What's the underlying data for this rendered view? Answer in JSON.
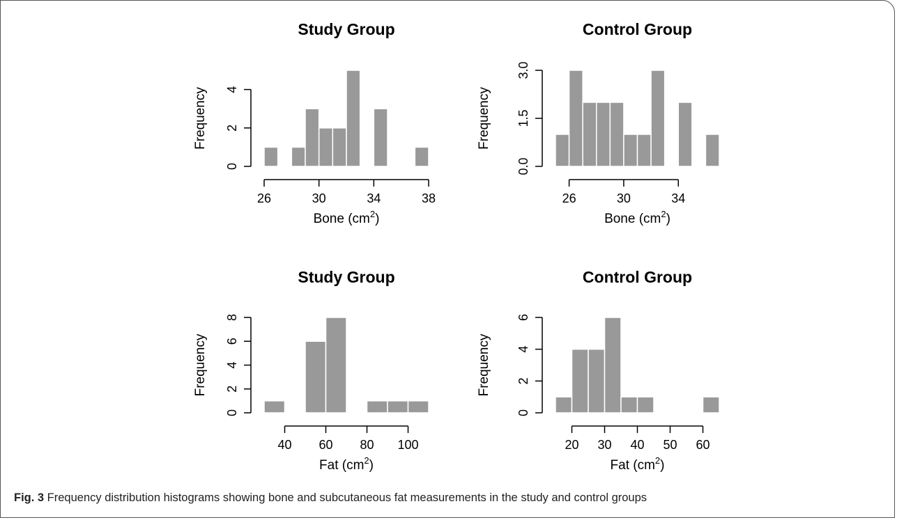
{
  "caption": {
    "label": "Fig. 3",
    "text": " Frequency distribution histograms showing bone and subcutaneous fat measurements in the study and control groups"
  },
  "colors": {
    "bar_fill": "#999999",
    "bar_stroke": "#ffffff",
    "axis": "#000000",
    "text": "#000000"
  },
  "chart_data": [
    {
      "type": "bar",
      "title": "Study Group",
      "xlabel": "Bone (cm",
      "xlabel_sup": "2",
      "xlabel_close": ")",
      "ylabel": "Frequency",
      "bins": [
        [
          26,
          27
        ],
        [
          27,
          28
        ],
        [
          28,
          29
        ],
        [
          29,
          30
        ],
        [
          30,
          31
        ],
        [
          31,
          32
        ],
        [
          32,
          33
        ],
        [
          33,
          34
        ],
        [
          34,
          35
        ],
        [
          35,
          36
        ],
        [
          36,
          37
        ],
        [
          37,
          38
        ]
      ],
      "values": [
        1,
        0,
        1,
        3,
        2,
        2,
        5,
        0,
        3,
        0,
        0,
        1
      ],
      "xlim": [
        26,
        38
      ],
      "ylim": [
        0,
        5
      ],
      "xticks": [
        26,
        30,
        34,
        38
      ],
      "xtick_labels": [
        "26",
        "30",
        "34",
        "38"
      ],
      "yticks": [
        0,
        2,
        4
      ],
      "ytick_labels": [
        "0",
        "2",
        "4"
      ]
    },
    {
      "type": "bar",
      "title": "Control Group",
      "xlabel": "Bone (cm",
      "xlabel_sup": "2",
      "xlabel_close": ")",
      "ylabel": "Frequency",
      "bins": [
        [
          25,
          26
        ],
        [
          26,
          27
        ],
        [
          27,
          28
        ],
        [
          28,
          29
        ],
        [
          29,
          30
        ],
        [
          30,
          31
        ],
        [
          31,
          32
        ],
        [
          32,
          33
        ],
        [
          33,
          34
        ],
        [
          34,
          35
        ],
        [
          35,
          36
        ],
        [
          36,
          37
        ]
      ],
      "values": [
        1,
        3,
        2,
        2,
        2,
        1,
        1,
        3,
        0,
        2,
        0,
        1
      ],
      "xlim": [
        25,
        37
      ],
      "ylim": [
        0,
        3
      ],
      "xticks": [
        26,
        30,
        34
      ],
      "xtick_labels": [
        "26",
        "30",
        "34"
      ],
      "yticks": [
        0,
        1.5,
        3
      ],
      "ytick_labels": [
        "0.0",
        "1.5",
        "3.0"
      ]
    },
    {
      "type": "bar",
      "title": "Study Group",
      "xlabel": "Fat (cm",
      "xlabel_sup": "2",
      "xlabel_close": ")",
      "ylabel": "Frequency",
      "bins": [
        [
          30,
          40
        ],
        [
          40,
          50
        ],
        [
          50,
          60
        ],
        [
          60,
          70
        ],
        [
          70,
          80
        ],
        [
          80,
          90
        ],
        [
          90,
          100
        ],
        [
          100,
          110
        ]
      ],
      "values": [
        1,
        0,
        6,
        8,
        0,
        1,
        1,
        1
      ],
      "xlim": [
        30,
        110
      ],
      "ylim": [
        0,
        8
      ],
      "xticks": [
        40,
        60,
        80,
        100
      ],
      "xtick_labels": [
        "40",
        "60",
        "80",
        "100"
      ],
      "yticks": [
        0,
        2,
        4,
        6,
        8
      ],
      "ytick_labels": [
        "0",
        "2",
        "4",
        "6",
        "8"
      ]
    },
    {
      "type": "bar",
      "title": "Control Group",
      "xlabel": "Fat (cm",
      "xlabel_sup": "2",
      "xlabel_close": ")",
      "ylabel": "Frequency",
      "bins": [
        [
          15,
          20
        ],
        [
          20,
          25
        ],
        [
          25,
          30
        ],
        [
          30,
          35
        ],
        [
          35,
          40
        ],
        [
          40,
          45
        ],
        [
          45,
          50
        ],
        [
          50,
          55
        ],
        [
          55,
          60
        ],
        [
          60,
          65
        ]
      ],
      "values": [
        1,
        4,
        4,
        6,
        1,
        1,
        0,
        0,
        0,
        1
      ],
      "xlim": [
        15,
        65
      ],
      "ylim": [
        0,
        6
      ],
      "xticks": [
        20,
        30,
        40,
        50,
        60
      ],
      "xtick_labels": [
        "20",
        "30",
        "40",
        "50",
        "60"
      ],
      "yticks": [
        0,
        2,
        4,
        6
      ],
      "ytick_labels": [
        "0",
        "2",
        "4",
        "6"
      ]
    }
  ]
}
